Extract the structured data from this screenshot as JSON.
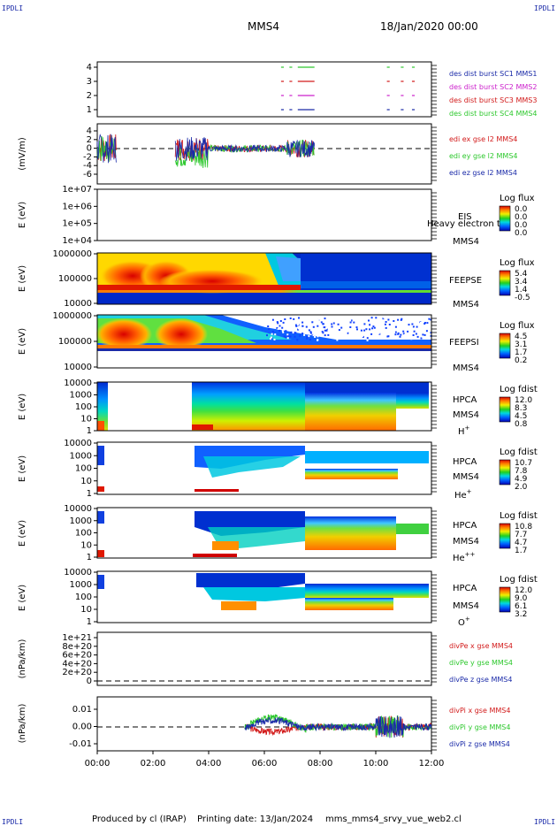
{
  "header": {
    "corner_label": "IPDLI",
    "spacecraft": "MMS4",
    "datetime": "18/Jan/2020 00:00"
  },
  "footer": {
    "produced": "Produced by cl (IRAP)",
    "printing": "Printing date: 13/Jan/2024",
    "script": "mms_mms4_srvy_vue_web2.cl"
  },
  "time_axis": {
    "ticks": [
      "00:00",
      "02:00",
      "04:00",
      "06:00",
      "08:00",
      "10:00",
      "12:00"
    ],
    "range_hours": [
      0,
      12
    ]
  },
  "colors": {
    "black": "#000000",
    "blue": "#1a2aa8",
    "red": "#d21a1a",
    "green": "#2ec82e",
    "magenta": "#cc22cc"
  },
  "chart_data": [
    {
      "type": "scatter",
      "panel": "burst",
      "yticks": [
        "4",
        "3",
        "2",
        "1"
      ],
      "legend": [
        "des dist burst SC1 MMS1",
        "des dist burst SC2 MMS2",
        "des dist burst SC3 MMS3",
        "des dist burst SC4 MMS4"
      ],
      "legend_colors": [
        "#1a2aa8",
        "#cc22cc",
        "#d21a1a",
        "#2ec82e"
      ],
      "series": [
        {
          "level": 4,
          "color": "#2ec82e",
          "intervals": [
            [
              6.6,
              6.7
            ],
            [
              6.9,
              7.0
            ],
            [
              7.2,
              7.8
            ],
            [
              10.4,
              10.5
            ],
            [
              10.9,
              11.0
            ],
            [
              11.3,
              11.4
            ]
          ]
        },
        {
          "level": 3,
          "color": "#d21a1a",
          "intervals": [
            [
              6.6,
              6.7
            ],
            [
              6.9,
              7.0
            ],
            [
              7.2,
              7.8
            ],
            [
              10.4,
              10.5
            ],
            [
              10.9,
              11.0
            ],
            [
              11.3,
              11.4
            ]
          ]
        },
        {
          "level": 2,
          "color": "#cc22cc",
          "intervals": [
            [
              6.6,
              6.7
            ],
            [
              6.9,
              7.0
            ],
            [
              7.2,
              7.8
            ],
            [
              10.4,
              10.5
            ],
            [
              10.9,
              11.0
            ],
            [
              11.3,
              11.4
            ]
          ]
        },
        {
          "level": 1,
          "color": "#1a2aa8",
          "intervals": [
            [
              6.6,
              6.7
            ],
            [
              6.9,
              7.0
            ],
            [
              7.2,
              7.8
            ],
            [
              10.4,
              10.5
            ],
            [
              10.9,
              11.0
            ],
            [
              11.3,
              11.4
            ]
          ]
        }
      ]
    },
    {
      "type": "line",
      "panel": "edi",
      "ylabel": "(mV/m)",
      "yticks": [
        "4",
        "2",
        "0",
        "-2",
        "-4",
        "-6"
      ],
      "ylim": [
        -6,
        5
      ],
      "legend": [
        "edi ex gse l2 MMS4",
        "edi ey gse l2 MMS4",
        "edi ez gse l2 MMS4"
      ],
      "legend_colors": [
        "#d21a1a",
        "#2ec82e",
        "#1a2aa8"
      ],
      "active_intervals": [
        [
          0.0,
          0.7
        ],
        [
          2.8,
          7.8
        ]
      ]
    },
    {
      "type": "heatmap",
      "panel": "eis",
      "ylabel": "E (eV)",
      "yticks": [
        "1e+07",
        "1e+06",
        "1e+05",
        "1e+04"
      ],
      "label": "EIS",
      "sublabel": "MMS4",
      "overlay": "Heavy electron to",
      "colorbar": {
        "title": "Log flux",
        "ticks": [
          "0.0",
          "0.0",
          "0.0",
          "0.0"
        ]
      }
    },
    {
      "type": "heatmap",
      "panel": "feepse",
      "ylabel": "E (eV)",
      "yticks": [
        "1000000",
        "100000",
        "10000"
      ],
      "label": "FEEPSE",
      "sublabel": "MMS4",
      "colorbar": {
        "title": "Log flux",
        "ticks": [
          "5.4",
          "3.4",
          "1.4",
          "-0.5"
        ]
      }
    },
    {
      "type": "heatmap",
      "panel": "feepsi",
      "ylabel": "E (eV)",
      "yticks": [
        "1000000",
        "100000",
        "10000"
      ],
      "label": "FEEPSI",
      "sublabel": "MMS4",
      "colorbar": {
        "title": "Log flux",
        "ticks": [
          "4.5",
          "3.1",
          "1.7",
          "0.2"
        ]
      }
    },
    {
      "type": "heatmap",
      "panel": "hpca_h",
      "ylabel": "E (eV)",
      "yticks": [
        "10000",
        "1000",
        "100",
        "10",
        "1"
      ],
      "label": "HPCA",
      "sublabel": "MMS4",
      "species": "H",
      "species_sup": "+",
      "colorbar": {
        "title": "Log fdist",
        "ticks": [
          "12.0",
          "8.3",
          "4.5",
          "0.8"
        ]
      }
    },
    {
      "type": "heatmap",
      "panel": "hpca_he",
      "ylabel": "E (eV)",
      "yticks": [
        "10000",
        "1000",
        "100",
        "10",
        "1"
      ],
      "label": "HPCA",
      "sublabel": "MMS4",
      "species": "He",
      "species_sup": "+",
      "colorbar": {
        "title": "Log fdist",
        "ticks": [
          "10.7",
          "7.8",
          "4.9",
          "2.0"
        ]
      }
    },
    {
      "type": "heatmap",
      "panel": "hpca_he2",
      "ylabel": "E (eV)",
      "yticks": [
        "10000",
        "1000",
        "100",
        "10",
        "1"
      ],
      "label": "HPCA",
      "sublabel": "MMS4",
      "species": "He",
      "species_sup": "++",
      "colorbar": {
        "title": "Log fdist",
        "ticks": [
          "10.8",
          "7.7",
          "4.7",
          "1.7"
        ]
      }
    },
    {
      "type": "heatmap",
      "panel": "hpca_o",
      "ylabel": "E (eV)",
      "yticks": [
        "10000",
        "1000",
        "100",
        "10",
        "1"
      ],
      "label": "HPCA",
      "sublabel": "MMS4",
      "species": "O",
      "species_sup": "+",
      "colorbar": {
        "title": "Log fdist",
        "ticks": [
          "12.0",
          "9.0",
          "6.1",
          "3.2"
        ]
      }
    },
    {
      "type": "line",
      "panel": "divpe",
      "ylabel": "(nPa/km)",
      "yticks": [
        "1e+21",
        "8e+20",
        "6e+20",
        "4e+20",
        "2e+20",
        "0"
      ],
      "legend": [
        "divPe x gse MMS4",
        "divPe y gse MMS4",
        "divPe z gse MMS4"
      ],
      "legend_colors": [
        "#d21a1a",
        "#2ec82e",
        "#1a2aa8"
      ]
    },
    {
      "type": "line",
      "panel": "divpi",
      "ylabel": "(nPa/km)",
      "yticks": [
        "0.01",
        "0.00",
        "-0.01"
      ],
      "ylim": [
        -0.015,
        0.015
      ],
      "legend": [
        "divPi x gse MMS4",
        "divPi y gse MMS4",
        "divPi z gse MMS4"
      ],
      "legend_colors": [
        "#d21a1a",
        "#2ec82e",
        "#1a2aa8"
      ],
      "active_interval": [
        5.3,
        12.0
      ]
    }
  ]
}
